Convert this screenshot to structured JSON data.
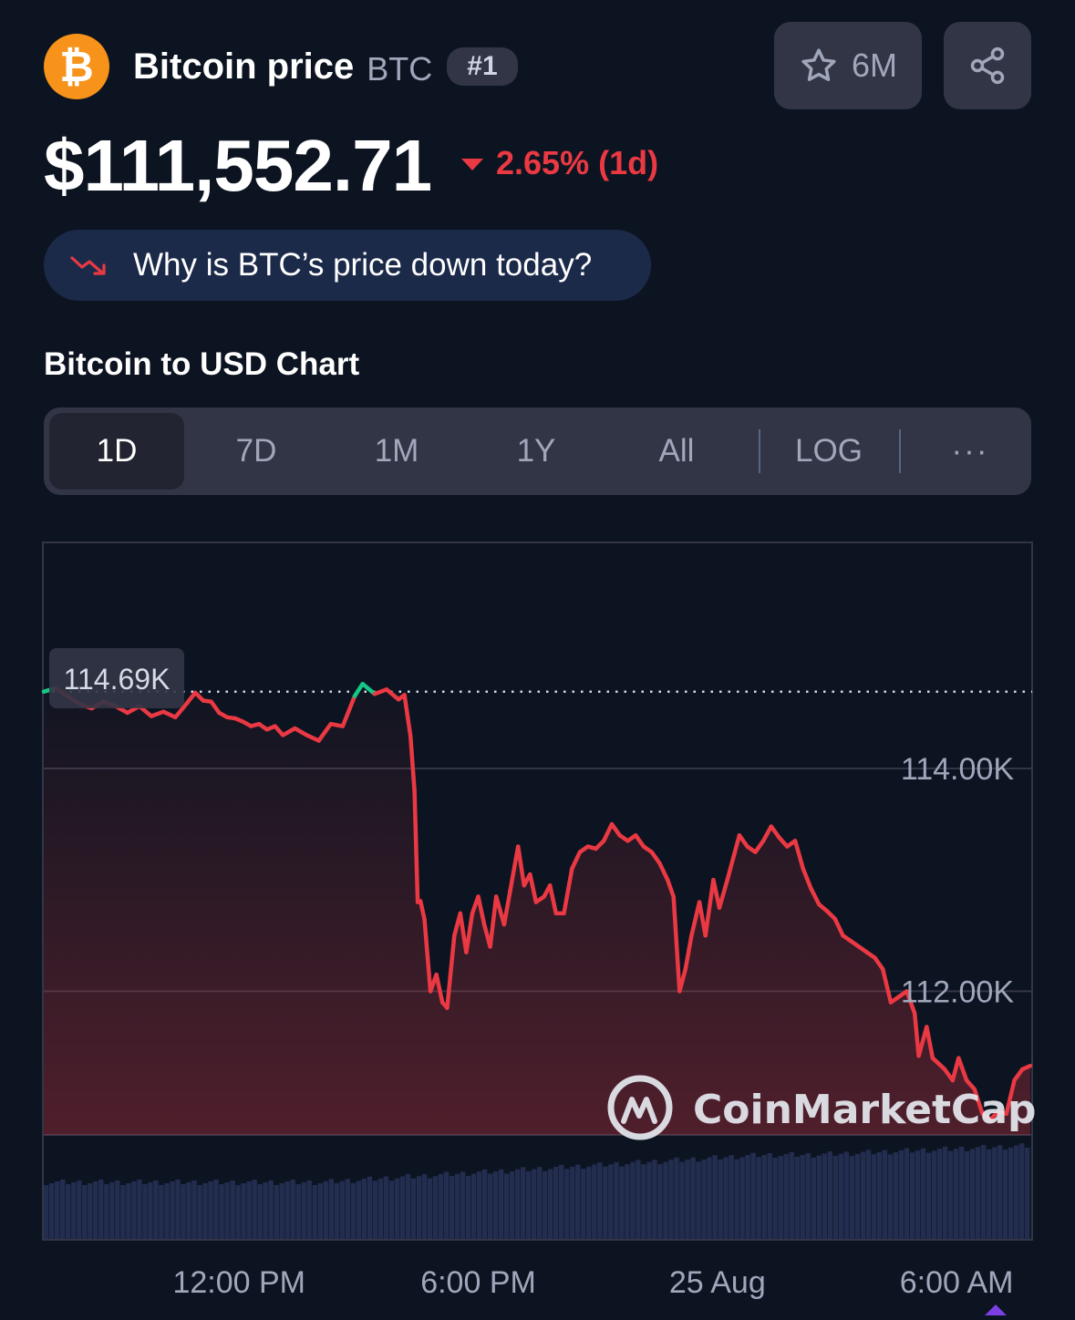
{
  "header": {
    "logo_glyph": "₿",
    "coin_name": "Bitcoin price",
    "symbol": "BTC",
    "rank": "#1",
    "watchlist_count": "6M"
  },
  "price": {
    "value": "$111,552.71",
    "change": "2.65% (1d)",
    "direction": "down",
    "color": "#ea3943"
  },
  "insight": {
    "label": "Why is BTC’s price down today?"
  },
  "section_title": "Bitcoin to USD Chart",
  "tabs": [
    {
      "label": "1D",
      "active": true
    },
    {
      "label": "7D"
    },
    {
      "label": "1M"
    },
    {
      "label": "1Y"
    },
    {
      "label": "All"
    },
    {
      "label": "LOG"
    },
    {
      "label": "···"
    }
  ],
  "chart_data": {
    "type": "line",
    "open_price_label": "114.69K",
    "open_price": 114690,
    "y_ticks": [
      {
        "value": 114000,
        "label": "114.00K"
      },
      {
        "value": 112000,
        "label": "112.00K"
      }
    ],
    "ylim": [
      110710,
      116030
    ],
    "x_ticks": [
      {
        "t": 4.9,
        "label": "12:00 PM"
      },
      {
        "t": 10.9,
        "label": "6:00 PM"
      },
      {
        "t": 16.9,
        "label": "25 Aug"
      },
      {
        "t": 22.9,
        "label": "6:00 AM"
      }
    ],
    "x_range": [
      0,
      24.75
    ],
    "grid": true,
    "watermark": "CoinMarketCap",
    "colors": {
      "down": "#ea3943",
      "up": "#16c784",
      "volume": "#222d4f",
      "grid": "#323546"
    },
    "series": [
      {
        "values": [
          [
            0.0,
            114690
          ],
          [
            0.3,
            114720
          ],
          [
            0.6,
            114650
          ],
          [
            0.9,
            114580
          ],
          [
            1.2,
            114540
          ],
          [
            1.5,
            114600
          ],
          [
            1.8,
            114560
          ],
          [
            2.1,
            114500
          ],
          [
            2.4,
            114560
          ],
          [
            2.7,
            114470
          ],
          [
            3.0,
            114510
          ],
          [
            3.3,
            114460
          ],
          [
            3.6,
            114590
          ],
          [
            3.8,
            114680
          ],
          [
            4.0,
            114610
          ],
          [
            4.2,
            114600
          ],
          [
            4.4,
            114500
          ],
          [
            4.6,
            114460
          ],
          [
            4.8,
            114450
          ],
          [
            5.0,
            114420
          ],
          [
            5.2,
            114380
          ],
          [
            5.4,
            114400
          ],
          [
            5.6,
            114350
          ],
          [
            5.8,
            114380
          ],
          [
            6.0,
            114300
          ],
          [
            6.3,
            114360
          ],
          [
            6.6,
            114300
          ],
          [
            6.9,
            114250
          ],
          [
            7.2,
            114400
          ],
          [
            7.5,
            114380
          ],
          [
            7.8,
            114650
          ],
          [
            8.0,
            114760
          ],
          [
            8.3,
            114670
          ],
          [
            8.6,
            114710
          ],
          [
            8.9,
            114620
          ],
          [
            9.05,
            114660
          ],
          [
            9.2,
            114290
          ],
          [
            9.3,
            113800
          ],
          [
            9.38,
            112800
          ],
          [
            9.45,
            112810
          ],
          [
            9.55,
            112650
          ],
          [
            9.7,
            112000
          ],
          [
            9.85,
            112150
          ],
          [
            10.0,
            111900
          ],
          [
            10.12,
            111850
          ],
          [
            10.3,
            112500
          ],
          [
            10.45,
            112700
          ],
          [
            10.6,
            112350
          ],
          [
            10.75,
            112700
          ],
          [
            10.9,
            112850
          ],
          [
            11.05,
            112600
          ],
          [
            11.2,
            112400
          ],
          [
            11.35,
            112850
          ],
          [
            11.55,
            112600
          ],
          [
            11.7,
            112900
          ],
          [
            11.9,
            113300
          ],
          [
            12.05,
            112950
          ],
          [
            12.2,
            113050
          ],
          [
            12.35,
            112800
          ],
          [
            12.55,
            112850
          ],
          [
            12.7,
            112950
          ],
          [
            12.85,
            112700
          ],
          [
            13.05,
            112700
          ],
          [
            13.25,
            113100
          ],
          [
            13.45,
            113250
          ],
          [
            13.65,
            113300
          ],
          [
            13.85,
            113280
          ],
          [
            14.05,
            113350
          ],
          [
            14.25,
            113500
          ],
          [
            14.45,
            113400
          ],
          [
            14.65,
            113350
          ],
          [
            14.85,
            113400
          ],
          [
            15.05,
            113300
          ],
          [
            15.25,
            113250
          ],
          [
            15.45,
            113150
          ],
          [
            15.65,
            113000
          ],
          [
            15.8,
            112850
          ],
          [
            15.95,
            112000
          ],
          [
            16.1,
            112200
          ],
          [
            16.25,
            112500
          ],
          [
            16.45,
            112800
          ],
          [
            16.6,
            112500
          ],
          [
            16.8,
            113000
          ],
          [
            16.95,
            112750
          ],
          [
            17.15,
            113000
          ],
          [
            17.3,
            113200
          ],
          [
            17.45,
            113400
          ],
          [
            17.65,
            113300
          ],
          [
            17.85,
            113250
          ],
          [
            18.05,
            113350
          ],
          [
            18.25,
            113480
          ],
          [
            18.45,
            113380
          ],
          [
            18.65,
            113300
          ],
          [
            18.85,
            113350
          ],
          [
            19.05,
            113100
          ],
          [
            19.25,
            112920
          ],
          [
            19.45,
            112780
          ],
          [
            19.65,
            112720
          ],
          [
            19.85,
            112650
          ],
          [
            20.05,
            112500
          ],
          [
            20.25,
            112450
          ],
          [
            20.45,
            112400
          ],
          [
            20.65,
            112350
          ],
          [
            20.85,
            112300
          ],
          [
            21.05,
            112200
          ],
          [
            21.25,
            111900
          ],
          [
            21.45,
            111950
          ],
          [
            21.65,
            112000
          ],
          [
            21.85,
            111800
          ],
          [
            21.95,
            111420
          ],
          [
            22.15,
            111680
          ],
          [
            22.3,
            111400
          ],
          [
            22.45,
            111350
          ],
          [
            22.6,
            111300
          ],
          [
            22.8,
            111200
          ],
          [
            22.95,
            111400
          ],
          [
            23.15,
            111200
          ],
          [
            23.35,
            111120
          ],
          [
            23.55,
            110900
          ],
          [
            23.75,
            110850
          ],
          [
            23.95,
            110920
          ],
          [
            24.15,
            110900
          ],
          [
            24.35,
            111200
          ],
          [
            24.55,
            111300
          ],
          [
            24.75,
            111330
          ]
        ]
      }
    ]
  }
}
